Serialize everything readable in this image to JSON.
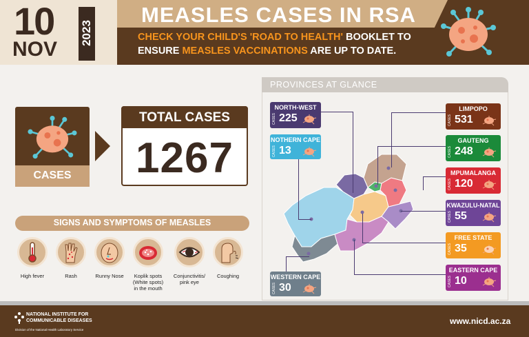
{
  "header": {
    "day": "10",
    "month": "NOV",
    "year": "2023",
    "headline": "MEASLES CASES IN RSA",
    "subline1_a": "CHECK YOUR CHILD'S 'ROAD TO HEALTH'",
    "subline1_b": " BOOKLET TO",
    "subline2_a": "ENSURE ",
    "subline2_b": "MEASLES VACCINATIONS",
    "subline2_c": " ARE UP TO DATE."
  },
  "cases": {
    "label": "CASES",
    "total_title": "TOTAL CASES",
    "total_value": "1267"
  },
  "symptoms": {
    "title": "SIGNS AND SYMPTOMS OF MEASLES",
    "items": [
      {
        "label": "High fever",
        "icon": "thermometer-icon"
      },
      {
        "label": "Rash",
        "icon": "hand-rash-icon"
      },
      {
        "label": "Runny Nose",
        "icon": "runny-nose-icon"
      },
      {
        "label": "Koplik spots (White spots) in the mouth",
        "icon": "mouth-spots-icon"
      },
      {
        "label": "Conjunctivitis/ pink eye",
        "icon": "red-eye-icon"
      },
      {
        "label": "Coughing",
        "icon": "cough-icon"
      }
    ]
  },
  "provinces": {
    "title": "PROVINCES AT GLANCE",
    "cases_word": "CASES",
    "items": [
      {
        "name": "NORTH-WEST",
        "value": "225",
        "color": "#4a3a70"
      },
      {
        "name": "NOTHERN CAPE",
        "value": "13",
        "color": "#3fb3d9"
      },
      {
        "name": "WESTERN CAPE",
        "value": "30",
        "color": "#6f7f8b"
      },
      {
        "name": "LIMPOPO",
        "value": "531",
        "color": "#7a3418"
      },
      {
        "name": "GAUTENG",
        "value": "248",
        "color": "#1b8a3a"
      },
      {
        "name": "MPUMALANGA",
        "value": "120",
        "color": "#d82a34"
      },
      {
        "name": "KWAZULU-NATAL",
        "value": "55",
        "color": "#6e4597"
      },
      {
        "name": "FREE STATE",
        "value": "35",
        "color": "#f39a22"
      },
      {
        "name": "EASTERN CAPE",
        "value": "10",
        "color": "#9b2f8f"
      }
    ]
  },
  "footer": {
    "org_line1": "NATIONAL INSTITUTE FOR",
    "org_line2": "COMMUNICABLE DISEASES",
    "division": "Division of the National Health Laboratory Service",
    "website": "www.nicd.ac.za"
  }
}
